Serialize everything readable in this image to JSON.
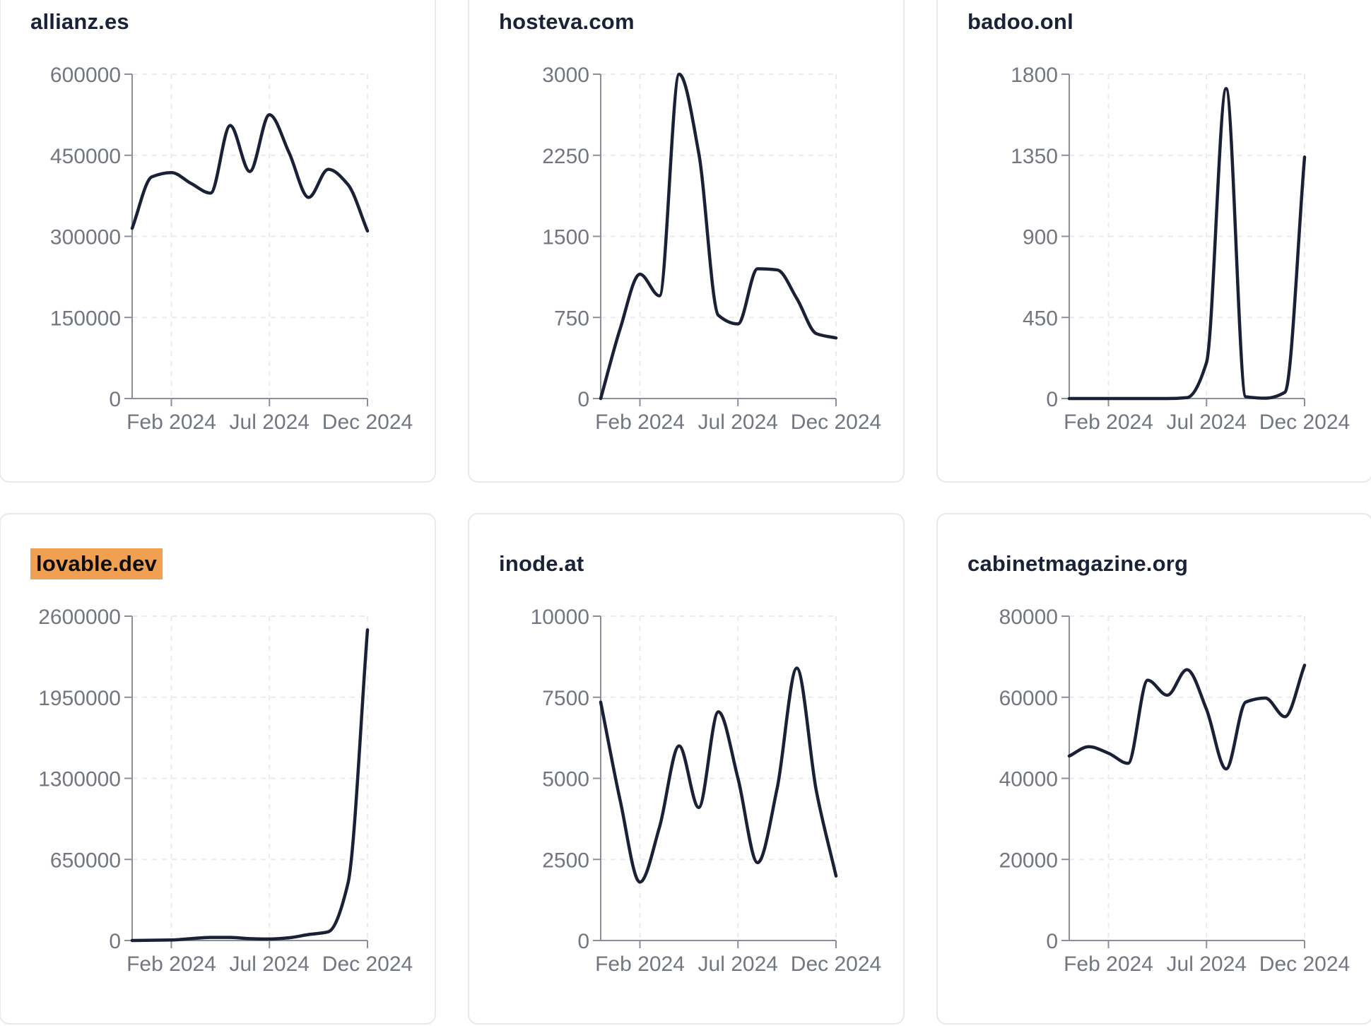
{
  "colors": {
    "background": "#ffffff",
    "card_border": "#e7e9f0",
    "title_text": "#1a2238",
    "tick_label": "#71767f",
    "axis": "#8a8f99",
    "gridline": "#eaebf0",
    "line": "#1a2036",
    "highlight_bg": "#f0a050",
    "highlight_text": "#0d0d0d"
  },
  "x_axis_tick_labels": [
    "Feb 2024",
    "Jul 2024",
    "Dec 2024"
  ],
  "chart_data": [
    {
      "type": "line",
      "title": "allianz.es",
      "highlighted": false,
      "x": [
        "Dec 2023",
        "Jan 2024",
        "Feb 2024",
        "Mar 2024",
        "Apr 2024",
        "May 2024",
        "Jun 2024",
        "Jul 2024",
        "Aug 2024",
        "Sep 2024",
        "Oct 2024",
        "Nov 2024",
        "Dec 2024"
      ],
      "values": [
        315000,
        410000,
        418000,
        398000,
        380000,
        505000,
        420000,
        525000,
        455000,
        372000,
        424000,
        396000,
        310000
      ],
      "ylim": [
        0,
        600000
      ],
      "yticks": [
        0,
        150000,
        300000,
        450000,
        600000
      ],
      "xticks": [
        {
          "index": 2,
          "label": "Feb 2024"
        },
        {
          "index": 7,
          "label": "Jul 2024"
        },
        {
          "index": 12,
          "label": "Dec 2024"
        }
      ],
      "grid": "dashed",
      "legend": "none"
    },
    {
      "type": "line",
      "title": "hosteva.com",
      "highlighted": false,
      "x": [
        "Dec 2023",
        "Jan 2024",
        "Feb 2024",
        "Mar 2024",
        "Apr 2024",
        "May 2024",
        "Jun 2024",
        "Jul 2024",
        "Aug 2024",
        "Sep 2024",
        "Oct 2024",
        "Nov 2024",
        "Dec 2024"
      ],
      "values": [
        0,
        650,
        1150,
        950,
        3000,
        2270,
        770,
        690,
        1200,
        1190,
        925,
        600,
        560
      ],
      "ylim": [
        0,
        3000
      ],
      "yticks": [
        0,
        750,
        1500,
        2250,
        3000
      ],
      "xticks": [
        {
          "index": 2,
          "label": "Feb 2024"
        },
        {
          "index": 7,
          "label": "Jul 2024"
        },
        {
          "index": 12,
          "label": "Dec 2024"
        }
      ],
      "grid": "dashed",
      "legend": "none"
    },
    {
      "type": "line",
      "title": "badoo.onl",
      "highlighted": false,
      "x": [
        "Dec 2023",
        "Jan 2024",
        "Feb 2024",
        "Mar 2024",
        "Apr 2024",
        "May 2024",
        "Jun 2024",
        "Jul 2024",
        "Aug 2024",
        "Sep 2024",
        "Oct 2024",
        "Nov 2024",
        "Dec 2024"
      ],
      "values": [
        0,
        0,
        0,
        0,
        0,
        0,
        5,
        200,
        1720,
        10,
        2,
        35,
        1340
      ],
      "ylim": [
        0,
        1800
      ],
      "yticks": [
        0,
        450,
        900,
        1350,
        1800
      ],
      "xticks": [
        {
          "index": 2,
          "label": "Feb 2024"
        },
        {
          "index": 7,
          "label": "Jul 2024"
        },
        {
          "index": 12,
          "label": "Dec 2024"
        }
      ],
      "grid": "dashed",
      "legend": "none"
    },
    {
      "type": "line",
      "title": "lovable.dev",
      "highlighted": true,
      "x": [
        "Dec 2023",
        "Jan 2024",
        "Feb 2024",
        "Mar 2024",
        "Apr 2024",
        "May 2024",
        "Jun 2024",
        "Jul 2024",
        "Aug 2024",
        "Sep 2024",
        "Oct 2024",
        "Nov 2024",
        "Dec 2024"
      ],
      "values": [
        0,
        2000,
        4000,
        15000,
        25000,
        25000,
        15000,
        12000,
        22000,
        48000,
        70000,
        455000,
        2490000
      ],
      "ylim": [
        0,
        2600000
      ],
      "yticks": [
        0,
        650000,
        1300000,
        1950000,
        2600000
      ],
      "xticks": [
        {
          "index": 2,
          "label": "Feb 2024"
        },
        {
          "index": 7,
          "label": "Jul 2024"
        },
        {
          "index": 12,
          "label": "Dec 2024"
        }
      ],
      "grid": "dashed",
      "legend": "none"
    },
    {
      "type": "line",
      "title": "inode.at",
      "highlighted": false,
      "x": [
        "Dec 2023",
        "Jan 2024",
        "Feb 2024",
        "Mar 2024",
        "Apr 2024",
        "May 2024",
        "Jun 2024",
        "Jul 2024",
        "Aug 2024",
        "Sep 2024",
        "Oct 2024",
        "Nov 2024",
        "Dec 2024"
      ],
      "values": [
        7350,
        4300,
        1800,
        3500,
        6000,
        4100,
        7050,
        5000,
        2400,
        4700,
        8400,
        4600,
        1990
      ],
      "ylim": [
        0,
        10000
      ],
      "yticks": [
        0,
        2500,
        5000,
        7500,
        10000
      ],
      "xticks": [
        {
          "index": 2,
          "label": "Feb 2024"
        },
        {
          "index": 7,
          "label": "Jul 2024"
        },
        {
          "index": 12,
          "label": "Dec 2024"
        }
      ],
      "grid": "dashed",
      "legend": "none"
    },
    {
      "type": "line",
      "title": "cabinetmagazine.org",
      "highlighted": false,
      "x": [
        "Dec 2023",
        "Jan 2024",
        "Feb 2024",
        "Mar 2024",
        "Apr 2024",
        "May 2024",
        "Jun 2024",
        "Jul 2024",
        "Aug 2024",
        "Sep 2024",
        "Oct 2024",
        "Nov 2024",
        "Dec 2024"
      ],
      "values": [
        45500,
        47800,
        46200,
        43700,
        64200,
        60500,
        66800,
        57000,
        42300,
        58800,
        59800,
        55200,
        67900
      ],
      "ylim": [
        0,
        80000
      ],
      "yticks": [
        0,
        20000,
        40000,
        60000,
        80000
      ],
      "xticks": [
        {
          "index": 2,
          "label": "Feb 2024"
        },
        {
          "index": 7,
          "label": "Jul 2024"
        },
        {
          "index": 12,
          "label": "Dec 2024"
        }
      ],
      "grid": "dashed",
      "legend": "none"
    }
  ]
}
